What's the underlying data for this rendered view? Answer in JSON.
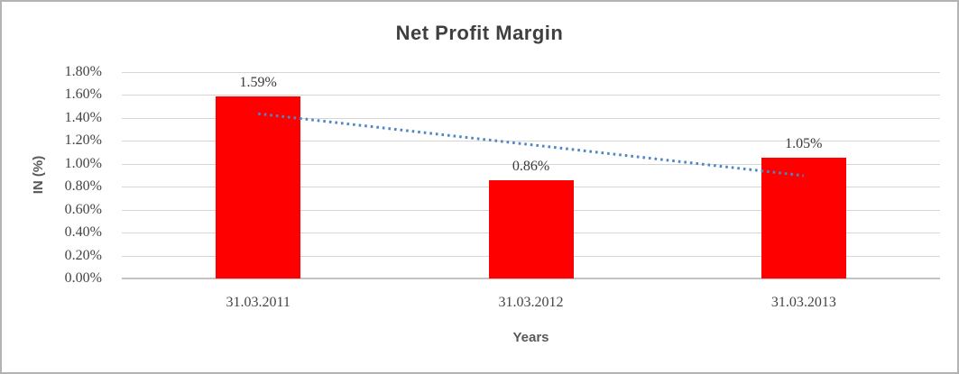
{
  "chart_data": {
    "type": "bar",
    "title": "Net Profit Margin",
    "xlabel": "Years",
    "ylabel": "IN (%)",
    "categories": [
      "31.03.2011",
      "31.03.2012",
      "31.03.2013"
    ],
    "values": [
      1.59,
      0.86,
      1.05
    ],
    "value_labels": [
      "1.59%",
      "0.86%",
      "1.05%"
    ],
    "ylim": [
      0,
      1.8
    ],
    "ytick_step": 0.2,
    "ytick_labels": [
      "0.00%",
      "0.20%",
      "0.40%",
      "0.60%",
      "0.80%",
      "1.00%",
      "1.20%",
      "1.40%",
      "1.60%",
      "1.80%"
    ],
    "grid": true,
    "legend": "none",
    "colors": {
      "bar": "#ff0000",
      "trendline": "#4e87c4",
      "gridline": "#d6d6d6",
      "title_text": "#3f3f3f",
      "axis_text": "#444444"
    },
    "trendline": {
      "type": "linear",
      "style": "dotted",
      "values": [
        1.4367,
        1.1667,
        0.8967
      ]
    }
  }
}
